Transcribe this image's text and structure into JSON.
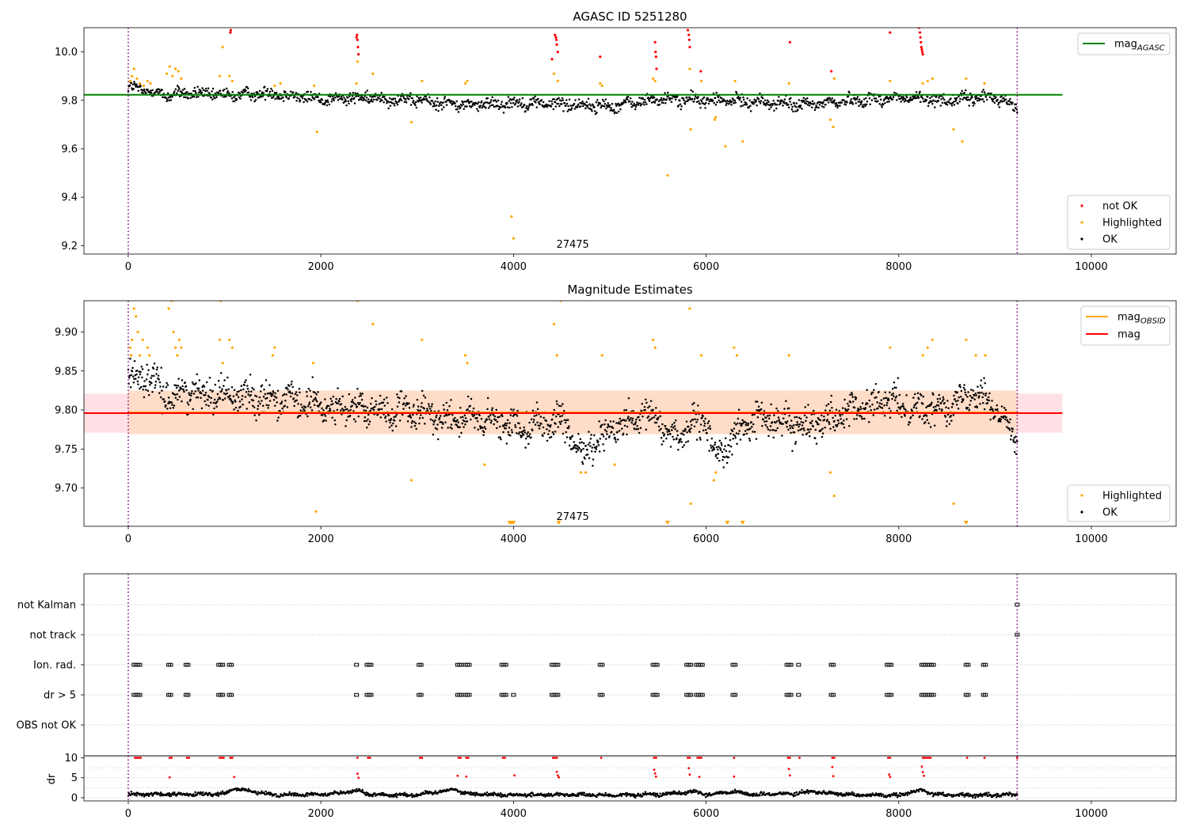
{
  "colors": {
    "ok": "#000000",
    "highlighted": "#FFA500",
    "not_ok": "#FF0000",
    "mag_agasc": "#008000",
    "mag_obsid": "#FFA500",
    "mag": "#FF0000",
    "band_outer": "#FFE0E4",
    "band_inner": "#FFDCC4",
    "obs_boundary": "#800080",
    "grid": "#B0B0B0"
  },
  "chart_data": [
    {
      "id": "top",
      "type": "scatter",
      "title": "AGASC ID 5251280",
      "xlabel": "",
      "ylabel": "",
      "xlim": [
        -460,
        10880
      ],
      "ylim": [
        9.165,
        10.1
      ],
      "xticks": [
        "0",
        "2000",
        "4000",
        "6000",
        "8000",
        "10000"
      ],
      "xtick_values": [
        0,
        2000,
        4000,
        6000,
        8000,
        10000
      ],
      "yticks": [
        "9.2",
        "9.4",
        "9.6",
        "9.8",
        "10.0"
      ],
      "ytick_values": [
        9.2,
        9.4,
        9.6,
        9.8,
        10.0
      ],
      "obs_boundaries": [
        0,
        9230
      ],
      "obsid_label": "27475",
      "obsid_label_x": 4615,
      "mag_agasc": 9.823,
      "reference_line_x_range": [
        -460,
        9700
      ],
      "legend_upper": [
        {
          "label": "mag",
          "subscript": "AGASC",
          "color": "#008000",
          "marker": "line"
        }
      ],
      "legend_lower": [
        {
          "label": "not OK",
          "color": "#FF0000",
          "marker": "dot"
        },
        {
          "label": "Highlighted",
          "color": "#FFA500",
          "marker": "dot"
        },
        {
          "label": "OK",
          "color": "#000000",
          "marker": "dot"
        }
      ],
      "series": [
        {
          "name": "OK",
          "color": "#000000",
          "trend_x": [
            0,
            200,
            400,
            600,
            1000,
            1500,
            2000,
            2500,
            3000,
            3500,
            4000,
            4500,
            5000,
            5500,
            6000,
            6500,
            7000,
            7500,
            8000,
            8500,
            9000,
            9230
          ],
          "trend_y": [
            9.855,
            9.84,
            9.82,
            9.83,
            9.82,
            9.83,
            9.805,
            9.81,
            9.8,
            9.78,
            9.79,
            9.785,
            9.775,
            9.805,
            9.8,
            9.795,
            9.78,
            9.8,
            9.81,
            9.8,
            9.815,
            9.77
          ],
          "spread": 0.025
        },
        {
          "name": "Highlighted",
          "color": "#FFA500",
          "x": [
            20,
            40,
            60,
            90,
            120,
            160,
            200,
            230,
            400,
            430,
            460,
            490,
            520,
            550,
            950,
            980,
            1050,
            1080,
            1520,
            1580,
            1930,
            1960,
            2370,
            2380,
            2540,
            2940,
            3050,
            3500,
            3520,
            3980,
            4000,
            4420,
            4460,
            4900,
            4920,
            5450,
            5470,
            5600,
            5830,
            5840,
            5950,
            6090,
            6100,
            6200,
            6300,
            6380,
            6860,
            7290,
            7320,
            7330,
            7910,
            8250,
            8300,
            8350,
            8570,
            8660,
            8700,
            8890
          ],
          "y": [
            9.88,
            9.9,
            9.93,
            9.89,
            9.87,
            9.86,
            9.88,
            9.87,
            9.91,
            9.94,
            9.9,
            9.93,
            9.92,
            9.89,
            9.9,
            10.02,
            9.9,
            9.88,
            9.86,
            9.87,
            9.86,
            9.67,
            9.87,
            9.96,
            9.91,
            9.71,
            9.88,
            9.87,
            9.88,
            9.32,
            9.23,
            9.91,
            9.88,
            9.87,
            9.86,
            9.89,
            9.88,
            9.49,
            9.93,
            9.68,
            9.88,
            9.72,
            9.73,
            9.61,
            9.88,
            9.63,
            9.87,
            9.72,
            9.69,
            9.89,
            9.88,
            9.87,
            9.88,
            9.89,
            9.68,
            9.63,
            9.89,
            9.87
          ]
        },
        {
          "name": "not OK",
          "color": "#FF0000",
          "x": [
            1060,
            1065,
            2370,
            2375,
            2380,
            2385,
            2390,
            4400,
            4430,
            4440,
            4445,
            4450,
            4460,
            4900,
            5470,
            5475,
            5480,
            5485,
            5810,
            5820,
            5825,
            5830,
            5945,
            6870,
            7300,
            7910,
            8210,
            8220,
            8225,
            8230,
            8235,
            8240,
            8245,
            8250
          ],
          "y": [
            10.08,
            10.09,
            10.06,
            10.07,
            10.05,
            10.02,
            9.99,
            9.97,
            10.07,
            10.06,
            10.05,
            10.03,
            10.0,
            9.98,
            10.04,
            10.0,
            9.98,
            9.93,
            10.09,
            10.07,
            10.05,
            10.02,
            9.92,
            10.04,
            9.92,
            10.08,
            10.1,
            10.08,
            10.06,
            10.04,
            10.02,
            10.01,
            10.0,
            9.99
          ]
        }
      ]
    },
    {
      "id": "middle",
      "type": "scatter",
      "title": "Magnitude Estimates",
      "xlabel": "",
      "ylabel": "",
      "xlim": [
        -460,
        10880
      ],
      "ylim": [
        9.651,
        9.94
      ],
      "xticks": [
        "0",
        "2000",
        "4000",
        "6000",
        "8000",
        "10000"
      ],
      "xtick_values": [
        0,
        2000,
        4000,
        6000,
        8000,
        10000
      ],
      "yticks": [
        "9.70",
        "9.75",
        "9.80",
        "9.85",
        "9.90"
      ],
      "ytick_values": [
        9.7,
        9.75,
        9.8,
        9.85,
        9.9
      ],
      "obs_boundaries": [
        0,
        9230
      ],
      "obsid_label": "27475",
      "obsid_label_x": 4615,
      "mag": 9.796,
      "mag_obsid": 9.797,
      "band_outer": [
        9.771,
        9.821
      ],
      "band_inner": [
        9.769,
        9.825
      ],
      "reference_line_x_range": [
        -460,
        9700
      ],
      "legend_upper": [
        {
          "label": "mag",
          "subscript": "OBSID",
          "color": "#FFA500",
          "marker": "line"
        },
        {
          "label": "mag",
          "subscript": "",
          "color": "#FF0000",
          "marker": "line"
        }
      ],
      "legend_lower": [
        {
          "label": "Highlighted",
          "color": "#FFA500",
          "marker": "dot"
        },
        {
          "label": "OK",
          "color": "#000000",
          "marker": "dot"
        }
      ],
      "series": [
        {
          "name": "OK",
          "color": "#000000",
          "trend_x": [
            0,
            150,
            300,
            450,
            600,
            1000,
            1500,
            2000,
            2500,
            3000,
            3500,
            4000,
            4500,
            4700,
            5000,
            5500,
            5600,
            6000,
            6100,
            6500,
            7000,
            7500,
            7900,
            8300,
            8700,
            8800,
            9000,
            9230
          ],
          "trend_y": [
            9.84,
            9.845,
            9.83,
            9.815,
            9.825,
            9.82,
            9.815,
            9.805,
            9.8,
            9.795,
            9.79,
            9.78,
            9.785,
            9.745,
            9.775,
            9.795,
            9.765,
            9.785,
            9.74,
            9.79,
            9.78,
            9.8,
            9.81,
            9.8,
            9.815,
            9.83,
            9.8,
            9.765
          ],
          "spread": 0.02
        },
        {
          "name": "Highlighted",
          "color": "#FFA500",
          "x": [
            20,
            30,
            40,
            60,
            80,
            100,
            120,
            150,
            200,
            220,
            420,
            450,
            470,
            490,
            510,
            530,
            550,
            950,
            960,
            980,
            1050,
            1080,
            1500,
            1520,
            1920,
            1950,
            2380,
            2540,
            2940,
            3050,
            3500,
            3520,
            3700,
            4420,
            4450,
            4490,
            4700,
            4750,
            4920,
            5050,
            5450,
            5470,
            5830,
            5840,
            5950,
            6080,
            6100,
            6290,
            6320,
            6860,
            7290,
            7330,
            7910,
            8250,
            8300,
            8350,
            8570,
            8700,
            8800,
            8900
          ],
          "y": [
            9.88,
            9.87,
            9.89,
            9.93,
            9.92,
            9.9,
            9.87,
            9.89,
            9.88,
            9.87,
            9.93,
            9.94,
            9.9,
            9.88,
            9.87,
            9.89,
            9.88,
            9.89,
            9.94,
            9.86,
            9.89,
            9.88,
            9.87,
            9.88,
            9.86,
            9.67,
            9.94,
            9.91,
            9.71,
            9.89,
            9.87,
            9.86,
            9.73,
            9.91,
            9.87,
            9.94,
            9.72,
            9.72,
            9.87,
            9.73,
            9.89,
            9.88,
            9.93,
            9.68,
            9.87,
            9.71,
            9.72,
            9.88,
            9.87,
            9.87,
            9.72,
            9.69,
            9.88,
            9.87,
            9.88,
            9.89,
            9.68,
            9.89,
            9.87,
            9.87
          ]
        },
        {
          "name": "Highlighted (below range)",
          "color": "#FFA500",
          "marker": "triangle-down",
          "x": [
            3960,
            3980,
            4000,
            4470,
            5600,
            6220,
            6380,
            8700
          ],
          "y": [
            9.655,
            9.655,
            9.655,
            9.655,
            9.655,
            9.655,
            9.655,
            9.655
          ]
        }
      ]
    },
    {
      "id": "flags",
      "type": "scatter",
      "title": "",
      "xlabel": "",
      "ylabel": "",
      "xlim": [
        -460,
        10880
      ],
      "categories": [
        "not Kalman",
        "not track",
        "Ion. rad.",
        "dr > 5",
        "OBS not OK"
      ],
      "obs_boundaries": [
        0,
        9230
      ],
      "flag_events": {
        "not Kalman": [
          9230
        ],
        "not track": [
          9230
        ],
        "Ion. rad.": [
          60,
          80,
          100,
          120,
          420,
          440,
          600,
          620,
          940,
          960,
          980,
          1050,
          1070,
          2370,
          2480,
          2500,
          2520,
          3020,
          3040,
          3420,
          3440,
          3460,
          3500,
          3520,
          3540,
          3880,
          3900,
          3920,
          4400,
          4420,
          4440,
          4460,
          4900,
          4920,
          5450,
          5470,
          5490,
          5800,
          5820,
          5840,
          5900,
          5920,
          5940,
          5960,
          6280,
          6300,
          6840,
          6860,
          6880,
          6960,
          7300,
          7320,
          7880,
          7900,
          7920,
          8240,
          8260,
          8280,
          8300,
          8320,
          8340,
          8360,
          8700,
          8720,
          8880,
          8900
        ],
        "dr > 5": [
          60,
          80,
          100,
          120,
          420,
          440,
          600,
          620,
          940,
          960,
          980,
          1050,
          1070,
          2370,
          2480,
          2500,
          2520,
          3020,
          3040,
          3420,
          3440,
          3460,
          3500,
          3520,
          3540,
          3880,
          3900,
          3920,
          4000,
          4400,
          4420,
          4440,
          4460,
          4900,
          4920,
          5450,
          5470,
          5490,
          5800,
          5820,
          5840,
          5900,
          5920,
          5940,
          5960,
          6280,
          6300,
          6840,
          6860,
          6880,
          6960,
          7300,
          7320,
          7880,
          7900,
          7920,
          8240,
          8260,
          8280,
          8300,
          8320,
          8340,
          8360,
          8700,
          8720,
          8880,
          8900
        ],
        "OBS not OK": []
      }
    },
    {
      "id": "dr",
      "type": "scatter",
      "title": "",
      "xlabel": "",
      "ylabel": "dr",
      "xlim": [
        -460,
        10880
      ],
      "ylim": [
        -0.8,
        10.5
      ],
      "xticks": [
        "0",
        "2000",
        "4000",
        "6000",
        "8000",
        "10000"
      ],
      "xtick_values": [
        0,
        2000,
        4000,
        6000,
        8000,
        10000
      ],
      "yticks": [
        "0",
        "5",
        "10"
      ],
      "ytick_values": [
        0,
        5,
        10
      ],
      "obs_boundaries": [
        0,
        9230
      ],
      "series": [
        {
          "name": "OK",
          "color": "#000000",
          "trend_x": [
            0,
            500,
            1000,
            1100,
            1500,
            2000,
            2400,
            2500,
            3000,
            3400,
            3500,
            4000,
            4500,
            5000,
            5500,
            5900,
            6000,
            6300,
            6500,
            6900,
            7100,
            7500,
            8000,
            8250,
            8350,
            8500,
            9000,
            9230
          ],
          "trend_y": [
            0.9,
            0.8,
            0.9,
            2.3,
            0.7,
            0.8,
            1.8,
            0.8,
            0.7,
            2.2,
            1.0,
            0.7,
            0.8,
            0.6,
            0.8,
            1.6,
            0.7,
            1.5,
            0.7,
            1.1,
            1.6,
            0.7,
            0.6,
            2.0,
            1.0,
            0.7,
            0.6,
            0.9
          ],
          "spread": 0.45
        },
        {
          "name": "not OK",
          "color": "#FF0000",
          "x": [
            70,
            90,
            110,
            130,
            430,
            450,
            610,
            630,
            950,
            970,
            990,
            1060,
            1080,
            2380,
            2490,
            2510,
            3030,
            3050,
            3430,
            3450,
            3510,
            3530,
            3890,
            3910,
            4410,
            4430,
            4450,
            4910,
            5460,
            5480,
            5810,
            5830,
            5910,
            5930,
            5950,
            6290,
            6850,
            6870,
            6970,
            7310,
            7330,
            7890,
            7910,
            8250,
            8270,
            8290,
            8310,
            8330,
            8710,
            8890,
            9230,
            1100,
            2380,
            2390,
            3420,
            3510,
            4450,
            4460,
            4470,
            5460,
            5470,
            5480,
            5820,
            5830,
            5930,
            6860,
            6870,
            7310,
            7320,
            7900,
            7910,
            8240,
            8250,
            8260,
            4010,
            6290,
            430
          ],
          "y": [
            10,
            10,
            10,
            10,
            10,
            10,
            10,
            10,
            10,
            10,
            10,
            10,
            10,
            10,
            10,
            10,
            10,
            10,
            10,
            10,
            10,
            10,
            10,
            10,
            10,
            10,
            10,
            10,
            10,
            10,
            10,
            10,
            10,
            10,
            10,
            10,
            10,
            10,
            10,
            10,
            10,
            10,
            10,
            10,
            10,
            10,
            10,
            10,
            10,
            10,
            10,
            5.2,
            6.0,
            5.0,
            5.5,
            5.3,
            6.5,
            5.6,
            5.1,
            7.0,
            6.1,
            5.3,
            7.4,
            5.8,
            5.2,
            7.2,
            5.6,
            7.7,
            5.4,
            5.8,
            5.2,
            7.8,
            6.4,
            5.5,
            5.6,
            5.3,
            5.1
          ]
        }
      ]
    }
  ]
}
